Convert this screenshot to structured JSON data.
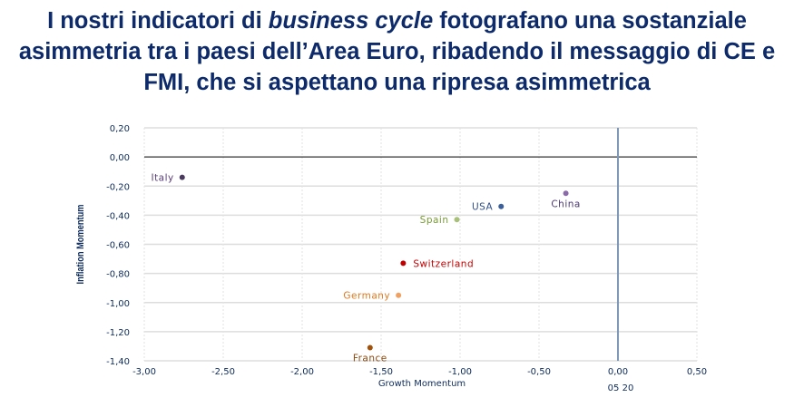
{
  "slide": {
    "title_part1": "I nostri indicatori di ",
    "title_italic": "business cycle",
    "title_part2": " fotografano una sostanziale asimmetria tra i paesi dell’Area Euro, ribadendo il messaggio di CE e FMI, che si aspettano una ripresa asimmetrica"
  },
  "chart_data": {
    "type": "scatter",
    "xlabel": "Growth Momentum",
    "ylabel": "Inflation Momentum",
    "xlim": [
      -3.0,
      0.5
    ],
    "ylim": [
      -1.4,
      0.2
    ],
    "xticks": [
      "-3,00",
      "-2,50",
      "-2,00",
      "-1,50",
      "-1,00",
      "-0,50",
      "0,00",
      "0,50"
    ],
    "yticks": [
      "0,20",
      "0,00",
      "-0,20",
      "-0,40",
      "-0,60",
      "-0,80",
      "-1,00",
      "-1,20",
      "-1,40"
    ],
    "vline_label": "05 20",
    "grid": true,
    "points": [
      {
        "name": "Italy",
        "x": -2.76,
        "y": -0.14,
        "color": "#4a3a5e",
        "label_color": "#5a3f78",
        "label_pos": "left"
      },
      {
        "name": "China",
        "x": -0.33,
        "y": -0.25,
        "color": "#8a6aa8",
        "label_color": "#4a3a6e",
        "label_pos": "below"
      },
      {
        "name": "USA",
        "x": -0.74,
        "y": -0.34,
        "color": "#3a5f9a",
        "label_color": "#2f4f8a",
        "label_pos": "left"
      },
      {
        "name": "Spain",
        "x": -1.02,
        "y": -0.43,
        "color": "#a8c07a",
        "label_color": "#7a9a3a",
        "label_pos": "left"
      },
      {
        "name": "Switzerland",
        "x": -1.36,
        "y": -0.73,
        "color": "#c00000",
        "label_color": "#c00000",
        "label_pos": "right"
      },
      {
        "name": "Germany",
        "x": -1.39,
        "y": -0.95,
        "color": "#f0a060",
        "label_color": "#e07a20",
        "label_pos": "left"
      },
      {
        "name": "France",
        "x": -1.57,
        "y": -1.31,
        "color": "#a0520a",
        "label_color": "#8a4a10",
        "label_pos": "below"
      }
    ]
  }
}
